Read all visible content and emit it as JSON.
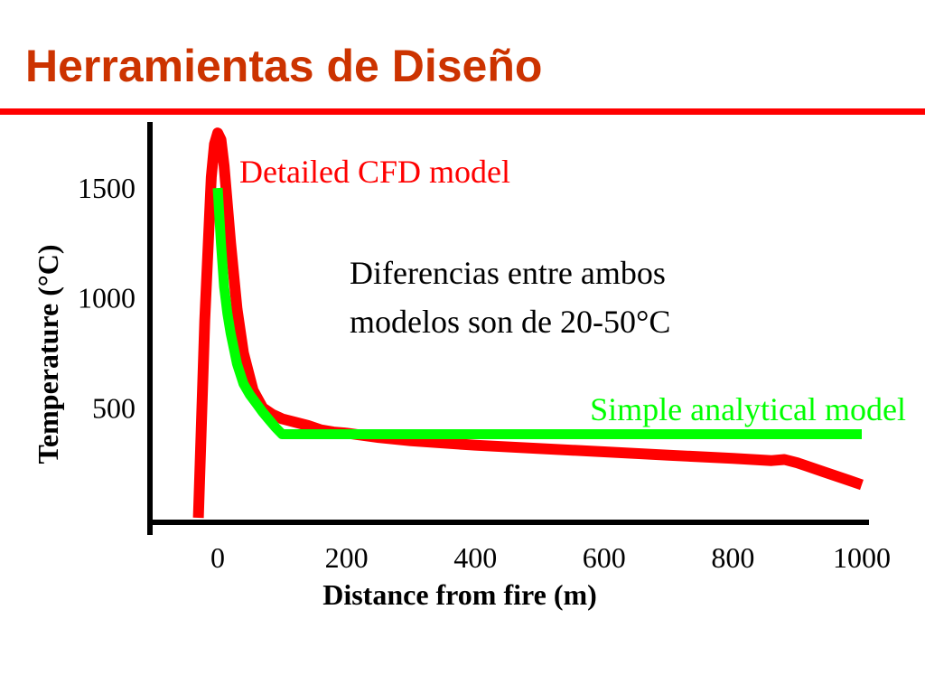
{
  "slide": {
    "title": "Herramientas de Diseño"
  },
  "colors": {
    "title": "#cc3300",
    "rule": "#ff0000",
    "cfd": "#ff0000",
    "analytical": "#00ff00",
    "axis": "#000000"
  },
  "chart_data": {
    "type": "line",
    "title": "",
    "xlabel": "Distance from fire (m)",
    "ylabel": "Temperature (°C)",
    "xlim": [
      -100,
      1000
    ],
    "ylim": [
      0,
      1750
    ],
    "xticks": [
      0,
      200,
      400,
      600,
      800,
      1000
    ],
    "yticks": [
      500,
      1000,
      1500
    ],
    "grid": false,
    "series": [
      {
        "name": "Detailed CFD model",
        "color": "#ff0000",
        "x": [
          -30,
          -20,
          -10,
          -5,
          0,
          5,
          10,
          20,
          30,
          40,
          55,
          70,
          85,
          100,
          120,
          140,
          160,
          180,
          200,
          250,
          300,
          400,
          500,
          600,
          700,
          800,
          860,
          880,
          900,
          940,
          980,
          1000
        ],
        "y": [
          0,
          900,
          1550,
          1700,
          1750,
          1720,
          1600,
          1250,
          950,
          750,
          580,
          500,
          470,
          450,
          435,
          420,
          400,
          390,
          385,
          365,
          350,
          330,
          315,
          300,
          285,
          270,
          260,
          265,
          250,
          210,
          170,
          150
        ]
      },
      {
        "name": "Simple analytical model",
        "color": "#00ff00",
        "x": [
          0,
          5,
          10,
          15,
          20,
          30,
          40,
          50,
          60,
          70,
          80,
          90,
          100,
          1000
        ],
        "y": [
          1500,
          1250,
          1050,
          930,
          840,
          700,
          610,
          560,
          520,
          480,
          445,
          410,
          380,
          380
        ]
      }
    ],
    "annotations": [
      {
        "text": "Diferencias entre ambos",
        "color": "#000000"
      },
      {
        "text": "modelos son de 20-50°C",
        "color": "#000000"
      }
    ]
  }
}
